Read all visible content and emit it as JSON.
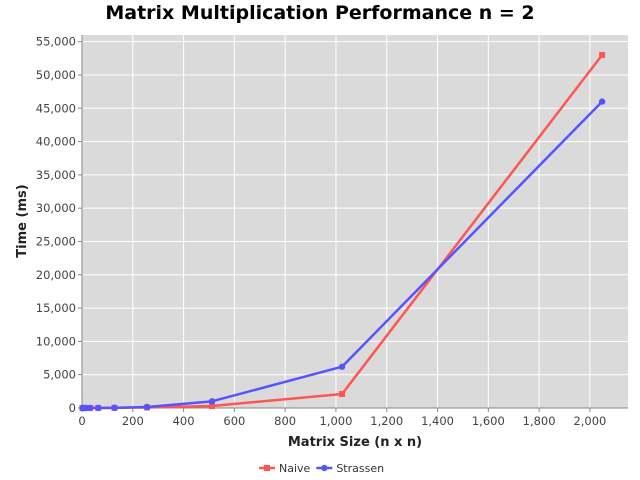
{
  "chart_data": {
    "type": "line",
    "title": "Matrix Multiplication Performance n = 2",
    "xlabel": "Matrix Size (n x n)",
    "ylabel": "Time (ms)",
    "xlim": [
      0,
      2150
    ],
    "ylim": [
      0,
      56000
    ],
    "x_ticks": [
      0,
      200,
      400,
      600,
      800,
      1000,
      1200,
      1400,
      1600,
      1800,
      2000
    ],
    "x_tick_labels": [
      "0",
      "200",
      "400",
      "600",
      "800",
      "1,000",
      "1,200",
      "1,400",
      "1,600",
      "1,800",
      "2,000"
    ],
    "y_ticks": [
      0,
      5000,
      10000,
      15000,
      20000,
      25000,
      30000,
      35000,
      40000,
      45000,
      50000,
      55000
    ],
    "y_tick_labels": [
      "0",
      "5,000",
      "10,000",
      "15,000",
      "20,000",
      "25,000",
      "30,000",
      "35,000",
      "40,000",
      "45,000",
      "50,000",
      "55,000"
    ],
    "grid": true,
    "legend_position": "bottom-center",
    "series": [
      {
        "name": "Naive",
        "color": "#ff5555",
        "marker": "square",
        "x": [
          2,
          4,
          8,
          16,
          32,
          64,
          128,
          256,
          512,
          1024,
          2048
        ],
        "y": [
          0,
          0,
          0,
          0,
          5,
          10,
          30,
          80,
          300,
          2100,
          53000
        ]
      },
      {
        "name": "Strassen",
        "color": "#5555ff",
        "marker": "circle",
        "x": [
          2,
          4,
          8,
          16,
          32,
          64,
          128,
          256,
          512,
          1024,
          2048
        ],
        "y": [
          0,
          0,
          0,
          0,
          2,
          5,
          20,
          150,
          1000,
          6200,
          46000
        ]
      }
    ]
  }
}
